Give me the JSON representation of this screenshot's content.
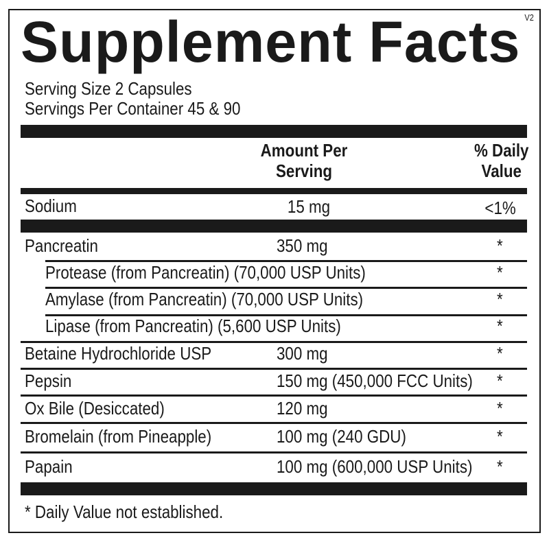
{
  "panel": {
    "title": "Supplement Facts",
    "version": "V2",
    "serving_size": "Serving Size  2 Capsules",
    "servings_per_container": "Servings Per Container  45 & 90",
    "header": {
      "amount_line1": "Amount Per",
      "amount_line2": "Serving",
      "dv_line1": "% Daily",
      "dv_line2": "Value"
    },
    "sodium": {
      "name": "Sodium",
      "amount": "15 mg",
      "dv": "<1%"
    },
    "rows": [
      {
        "name": "Pancreatin",
        "amount": "350 mg",
        "dv": "*"
      },
      {
        "name": "Protease (from Pancreatin) (70,000 USP Units)",
        "amount": "",
        "dv": "*"
      },
      {
        "name": "Amylase (from Pancreatin) (70,000 USP Units)",
        "amount": "",
        "dv": "*"
      },
      {
        "name": "Lipase (from Pancreatin) (5,600 USP Units)",
        "amount": "",
        "dv": "*"
      },
      {
        "name": "Betaine Hydrochloride USP",
        "amount": "300 mg",
        "dv": "*"
      },
      {
        "name": "Pepsin",
        "amount": "150 mg (450,000 FCC Units)",
        "dv": "*"
      },
      {
        "name": "Ox Bile (Desiccated)",
        "amount": "120 mg",
        "dv": "*"
      },
      {
        "name": "Bromelain (from Pineapple)",
        "amount": "100 mg (240 GDU)",
        "dv": "*"
      },
      {
        "name": "Papain",
        "amount": "100 mg (600,000 USP Units)",
        "dv": "*"
      }
    ],
    "footnote": "* Daily Value not established."
  }
}
